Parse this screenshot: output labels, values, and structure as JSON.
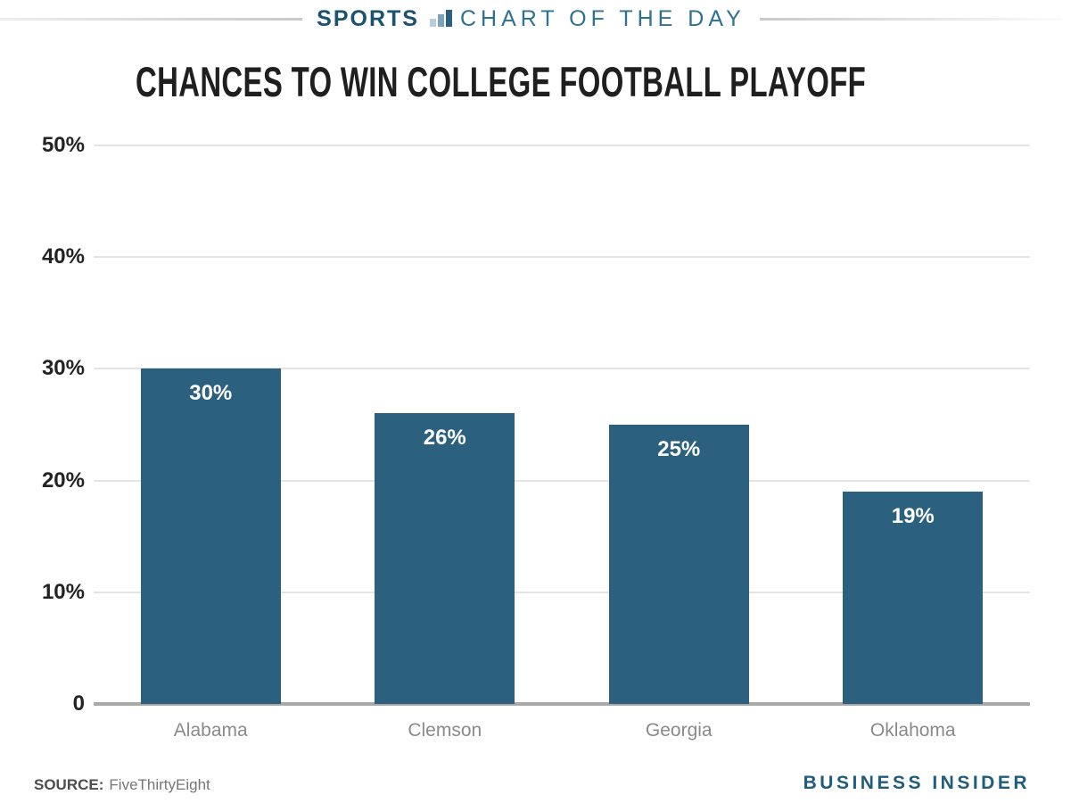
{
  "header": {
    "brand": "SPORTS",
    "section": "CHART OF THE DAY",
    "chart_icon": "bar-chart-icon"
  },
  "title": "CHANCES TO WIN COLLEGE FOOTBALL PLAYOFF",
  "chart_data": {
    "type": "bar",
    "title": "CHANCES TO WIN COLLEGE FOOTBALL PLAYOFF",
    "categories": [
      "Alabama",
      "Clemson",
      "Georgia",
      "Oklahoma"
    ],
    "values": [
      30,
      26,
      25,
      19
    ],
    "value_labels": [
      "30%",
      "26%",
      "25%",
      "19%"
    ],
    "xlabel": "",
    "ylabel": "",
    "ylim": [
      0,
      50
    ],
    "yticks": [
      50,
      40,
      30,
      20,
      10,
      0
    ],
    "ytick_labels": [
      "50%",
      "40%",
      "30%",
      "20%",
      "10%",
      "0"
    ],
    "grid": true,
    "legend": false,
    "bar_color": "#2b617f"
  },
  "footer": {
    "source_label": "SOURCE:",
    "source_value": "FiveThirtyEight",
    "brand": "BUSINESS INSIDER"
  },
  "colors": {
    "accent": "#2b617f",
    "header_brand": "#1b526f",
    "header_section": "#2e7190",
    "gridline": "#e4e4e4",
    "baseline": "#a9a9a9",
    "ytick_text": "#232323",
    "category_label": "#8a8a8a",
    "footer_brand": "#205d7c"
  }
}
